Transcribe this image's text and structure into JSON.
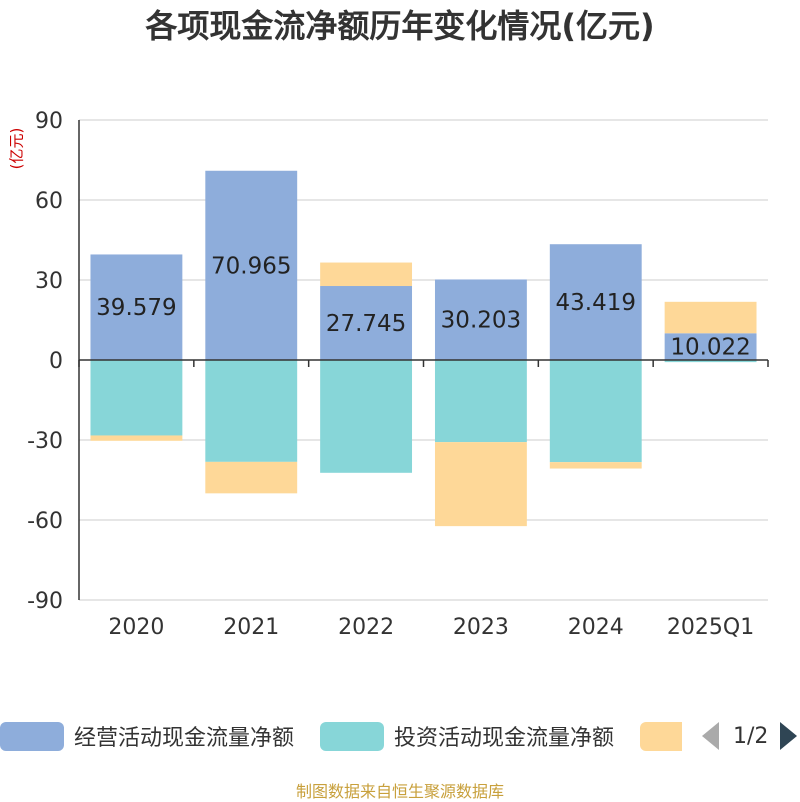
{
  "title": "各项现金流净额历年变化情况(亿元)",
  "unit": "(亿元)",
  "source": "制图数据来自恒生聚源数据库",
  "legend": {
    "items": [
      {
        "label": "经营活动现金流量净额",
        "color": "#8eaddb"
      },
      {
        "label": "投资活动现金流量净额",
        "color": "#87d6d8"
      },
      {
        "label": "",
        "color": "#fed898"
      }
    ],
    "pager": "1/2"
  },
  "chart_data": {
    "type": "bar",
    "stacked": true,
    "categories": [
      "2020",
      "2021",
      "2022",
      "2023",
      "2024",
      "2025Q1"
    ],
    "ylim": [
      -90,
      90
    ],
    "yticks": [
      90,
      60,
      30,
      0,
      -30,
      -60,
      -90
    ],
    "grid": true,
    "legend_position": "bottom",
    "series": [
      {
        "name": "经营活动现金流量净额",
        "color": "#8eaddb",
        "show_labels": true,
        "values": [
          39.579,
          70.965,
          27.745,
          30.203,
          43.419,
          10.022
        ]
      },
      {
        "name": "投资活动现金流量净额",
        "color": "#87d6d8",
        "show_labels": false,
        "values": [
          -28.3,
          -38.2,
          -42.3,
          -30.8,
          -38.3,
          -0.8
        ]
      },
      {
        "color": "#fed898",
        "show_labels": false,
        "values": [
          -2.0,
          -11.8,
          8.8,
          -31.5,
          -2.4,
          11.8
        ]
      }
    ]
  }
}
